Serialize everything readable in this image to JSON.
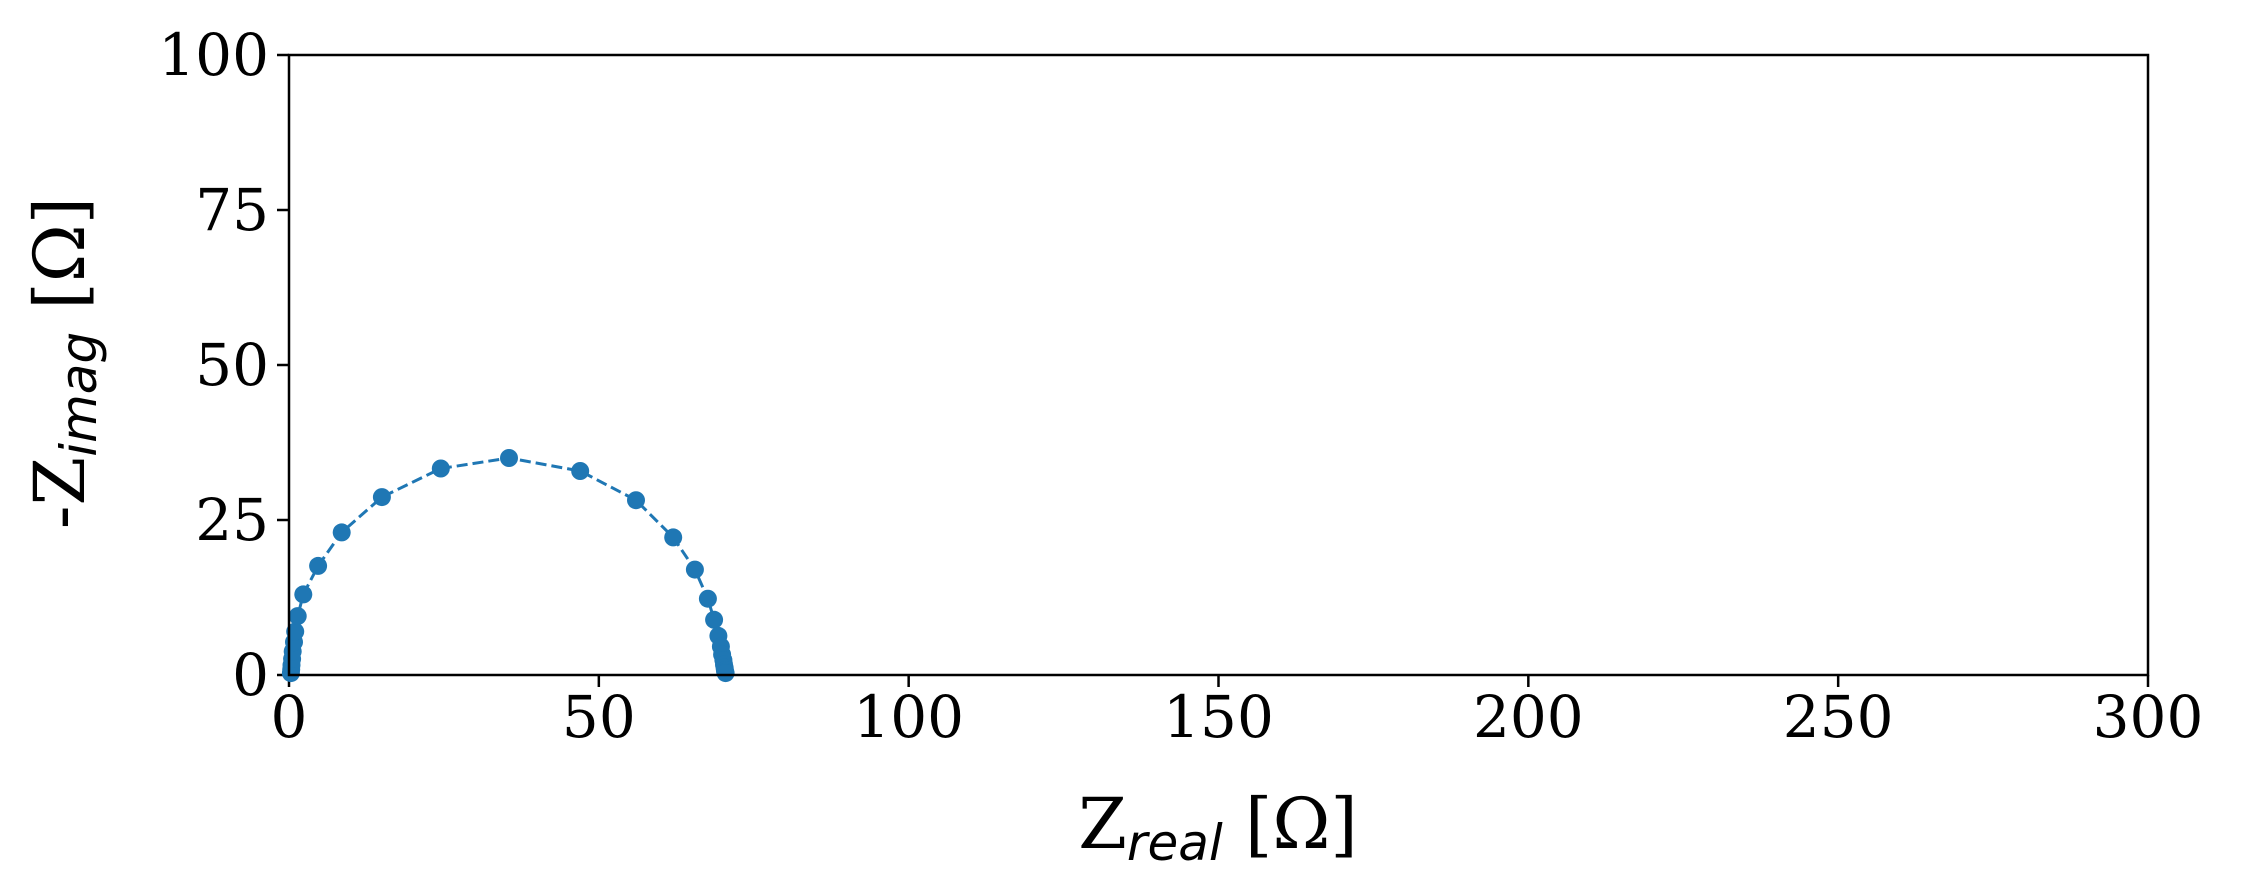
{
  "chart_data": {
    "type": "scatter",
    "title": "",
    "xlabel": {
      "main": "Z",
      "sub": "real",
      "unit": " [Ω]"
    },
    "ylabel": {
      "main": "-Z",
      "sub": "imag",
      "unit": " [Ω]"
    },
    "xlim": [
      0,
      300
    ],
    "ylim": [
      0,
      100
    ],
    "x_ticks": [
      0,
      50,
      100,
      150,
      200,
      250,
      300
    ],
    "y_ticks": [
      0,
      25,
      50,
      75,
      100
    ],
    "grid": false,
    "legend": "none",
    "series": [
      {
        "color": "#1f77b4",
        "line_style": "dashed",
        "marker": "circle",
        "points": [
          {
            "x": 0.3,
            "y": 0.3
          },
          {
            "x": 0.35,
            "y": 0.9
          },
          {
            "x": 0.4,
            "y": 1.6
          },
          {
            "x": 0.5,
            "y": 2.6
          },
          {
            "x": 0.6,
            "y": 3.8
          },
          {
            "x": 0.8,
            "y": 5.3
          },
          {
            "x": 1.0,
            "y": 7.0
          },
          {
            "x": 1.4,
            "y": 9.5
          },
          {
            "x": 2.3,
            "y": 13.0
          },
          {
            "x": 4.7,
            "y": 17.6
          },
          {
            "x": 8.5,
            "y": 23.0
          },
          {
            "x": 15.0,
            "y": 28.7
          },
          {
            "x": 24.5,
            "y": 33.3
          },
          {
            "x": 35.5,
            "y": 35.0
          },
          {
            "x": 47.0,
            "y": 32.9
          },
          {
            "x": 56.0,
            "y": 28.2
          },
          {
            "x": 62.0,
            "y": 22.2
          },
          {
            "x": 65.5,
            "y": 17.0
          },
          {
            "x": 67.6,
            "y": 12.3
          },
          {
            "x": 68.6,
            "y": 8.9
          },
          {
            "x": 69.3,
            "y": 6.3
          },
          {
            "x": 69.7,
            "y": 4.6
          },
          {
            "x": 69.9,
            "y": 3.3
          },
          {
            "x": 70.1,
            "y": 2.4
          },
          {
            "x": 70.2,
            "y": 1.7
          },
          {
            "x": 70.3,
            "y": 1.2
          },
          {
            "x": 70.35,
            "y": 0.8
          },
          {
            "x": 70.4,
            "y": 0.5
          },
          {
            "x": 70.45,
            "y": 0.3
          }
        ]
      }
    ]
  }
}
